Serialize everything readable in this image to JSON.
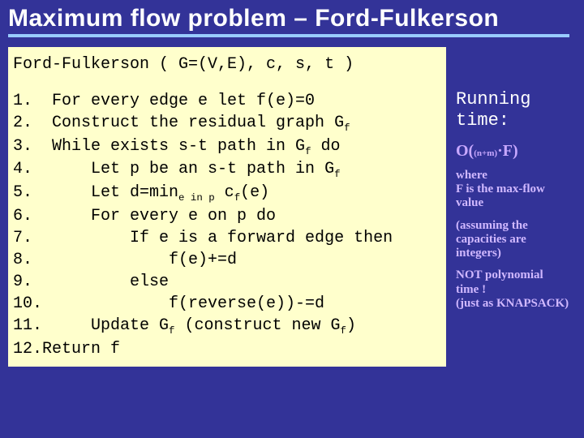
{
  "slide": {
    "title": "Maximum flow problem – Ford-Fulkerson",
    "title_color": "#ffffff",
    "underline_color": "#99ccff",
    "background_color": "#333398"
  },
  "codebox": {
    "background_color": "#ffffcc",
    "text_color": "#000000",
    "font_family": "Courier New",
    "signature": "Ford-Fulkerson ( G=(V,E), c, s, t )",
    "lines": [
      {
        "n": "1.",
        "indent": 0,
        "text": "For every edge e let f(e)=0"
      },
      {
        "n": "2.",
        "indent": 0,
        "text_html": "Construct the residual graph G<span class=\"sub\">f</span>"
      },
      {
        "n": "3.",
        "indent": 0,
        "text_html": "While exists s-t path in G<span class=\"sub\">f</span> do"
      },
      {
        "n": "4.",
        "indent": 1,
        "text_html": "Let p be an s-t path in G<span class=\"sub\">f</span>"
      },
      {
        "n": "5.",
        "indent": 1,
        "text_html": "Let d=min<span class=\"sub\">e in p</span> c<span class=\"sub\">f</span>(e)"
      },
      {
        "n": "6.",
        "indent": 1,
        "text": "For every e on p do"
      },
      {
        "n": "7.",
        "indent": 2,
        "text": "If e is a forward edge then"
      },
      {
        "n": "8.",
        "indent": 3,
        "text": "f(e)+=d"
      },
      {
        "n": "9.",
        "indent": 2,
        "text": "else"
      },
      {
        "n": "10.",
        "indent": 3,
        "text": "f(reverse(e))-=d"
      },
      {
        "n": "11.",
        "indent": 1,
        "text_html": "Update G<span class=\"sub\">f</span> (construct new G<span class=\"sub\">f</span>)"
      },
      {
        "n": "12.",
        "indent": 0,
        "text": "Return f",
        "tight": true
      }
    ]
  },
  "sidebar": {
    "running_label_1": "Running",
    "running_label_2": "time:",
    "complexity": "O((n+m)·F)",
    "note1_l1": "where",
    "note1_l2": "F is the max-flow",
    "note1_l3": "value",
    "note2_l1": "(assuming the",
    "note2_l2": "capacities are",
    "note2_l3": "integers)",
    "note3_l1": "NOT polynomial",
    "note3_l2": "time !",
    "note3_l3": "(just as KNAPSACK)",
    "hand_color": "#d0b8ff"
  }
}
